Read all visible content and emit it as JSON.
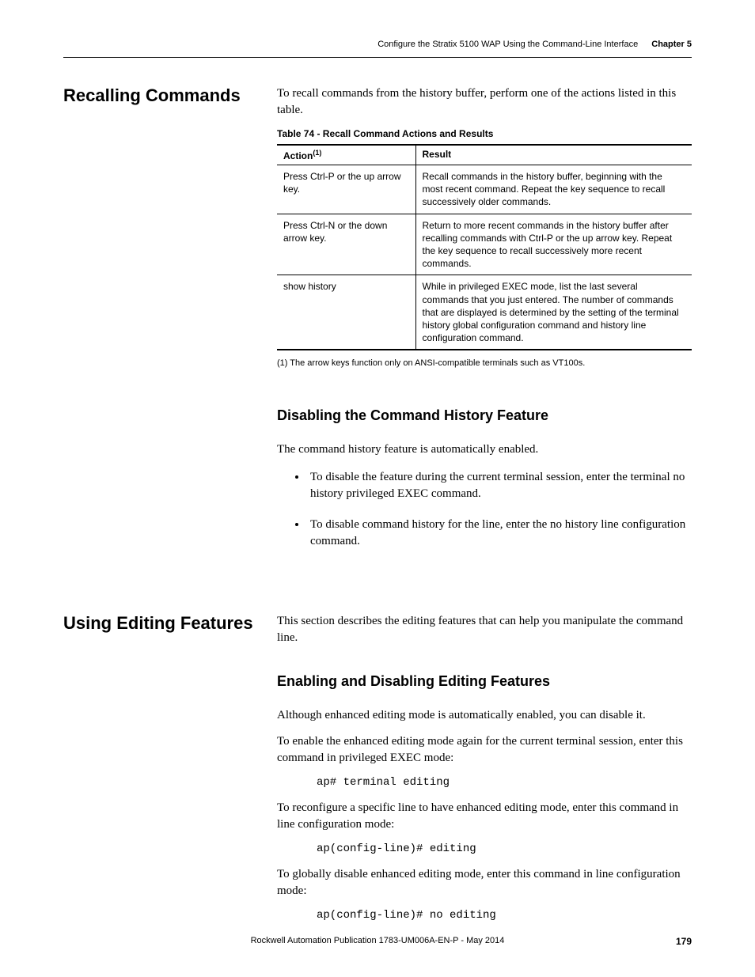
{
  "header": {
    "title": "Configure the Stratix 5100 WAP Using the Command-Line Interface",
    "chapter": "Chapter 5"
  },
  "section1": {
    "heading": "Recalling Commands",
    "intro": "To recall commands from the history buffer, perform one of the actions listed in this table.",
    "table_title": "Table 74 - Recall Command Actions and Results",
    "table": {
      "col1_header": "Action",
      "col1_sup": "(1)",
      "col2_header": "Result",
      "rows": [
        {
          "action": "Press Ctrl-P or the up arrow key.",
          "result": "Recall commands in the history buffer, beginning with the most recent command. Repeat the key sequence to recall successively older commands."
        },
        {
          "action": "Press Ctrl-N or the down arrow key.",
          "result": "Return to more recent commands in the history buffer after recalling commands with Ctrl-P or the up arrow key. Repeat the key sequence to recall successively more recent commands."
        },
        {
          "action": "show history",
          "result": "While in privileged EXEC mode, list the last several commands that you just entered. The number of commands that are displayed is determined by the setting of the terminal history global configuration command and history line configuration command."
        }
      ]
    },
    "footnote": "(1)   The arrow keys function only on ANSI-compatible terminals such as VT100s.",
    "sub_heading": "Disabling the Command History Feature",
    "sub_para": "The command history feature is automatically enabled.",
    "bullets": [
      "To disable the feature during the current terminal session, enter the terminal no history privileged EXEC command.",
      "To disable command history for the line, enter the no history line configuration command."
    ]
  },
  "section2": {
    "heading": "Using Editing Features",
    "intro": "This section describes the editing features that can help you manipulate the command line.",
    "sub_heading": "Enabling and Disabling Editing Features",
    "para1": "Although enhanced editing mode is automatically enabled, you can disable it.",
    "para2": "To enable the enhanced editing mode again for the current terminal session, enter this command in privileged EXEC mode:",
    "code1": "ap# terminal editing",
    "para3": "To reconfigure a specific line to have enhanced editing mode, enter this command in line configuration mode:",
    "code2": "ap(config-line)# editing",
    "para4": "To globally disable enhanced editing mode, enter this command in line configuration mode:",
    "code3": "ap(config-line)# no editing"
  },
  "footer": {
    "publication": "Rockwell Automation Publication 1783-UM006A-EN-P - May 2014",
    "page": "179"
  }
}
